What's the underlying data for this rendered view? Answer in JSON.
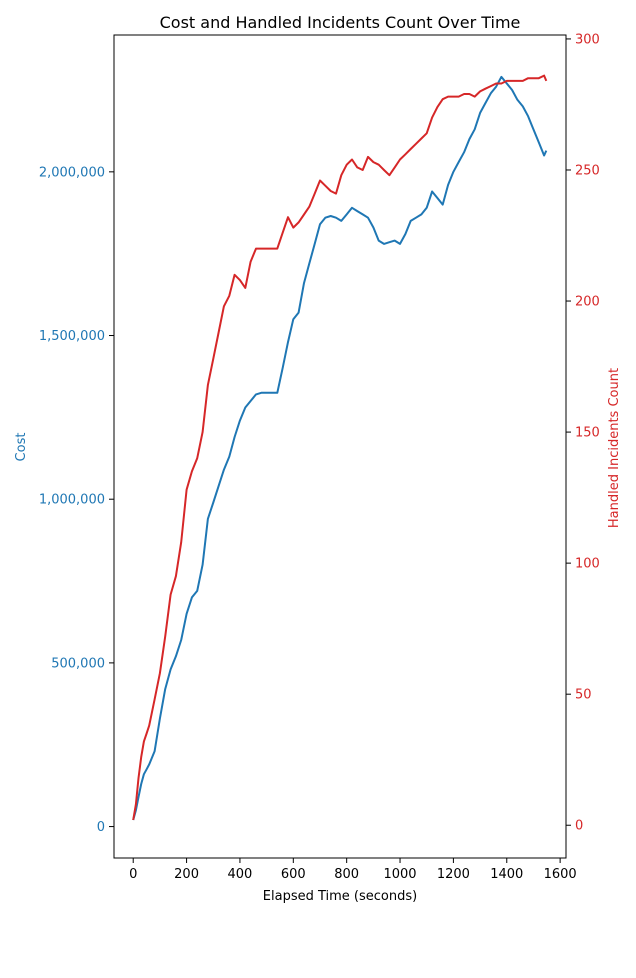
{
  "chart_data": {
    "type": "line",
    "title": "Cost and Handled Incidents Count Over Time",
    "xlabel": "Elapsed Time (seconds)",
    "ylabel_left": "Cost",
    "ylabel_right": "Handled Incidents Count",
    "xlim": [
      -72,
      1622
    ],
    "ylim_left": [
      -96000,
      2418000
    ],
    "ylim_right": [
      -12.5,
      301.5
    ],
    "x_ticks": [
      0,
      200,
      400,
      600,
      800,
      1000,
      1200,
      1400,
      1600
    ],
    "x_tick_labels": [
      "0",
      "200",
      "400",
      "600",
      "800",
      "1000",
      "1200",
      "1400",
      "1600"
    ],
    "y_left_ticks": [
      0,
      500000,
      1000000,
      1500000,
      2000000
    ],
    "y_left_tick_labels": [
      "0",
      "500,000",
      "1,000,000",
      "1,500,000",
      "2,000,000"
    ],
    "y_right_ticks": [
      0,
      50,
      100,
      150,
      200,
      250,
      300
    ],
    "y_right_tick_labels": [
      "0",
      "50",
      "100",
      "150",
      "200",
      "250",
      "300"
    ],
    "grid": false,
    "legend": "none",
    "colors": {
      "cost": "#1f77b4",
      "incidents": "#d62728",
      "axis": "#000000"
    },
    "series": [
      {
        "axis": "left",
        "color": "#1f77b4",
        "x": [
          0,
          10,
          20,
          30,
          40,
          50,
          60,
          80,
          100,
          120,
          140,
          160,
          180,
          200,
          220,
          240,
          260,
          280,
          300,
          320,
          340,
          360,
          380,
          400,
          420,
          440,
          460,
          480,
          500,
          520,
          540,
          560,
          580,
          600,
          620,
          640,
          660,
          680,
          700,
          720,
          740,
          760,
          780,
          800,
          820,
          840,
          860,
          880,
          900,
          920,
          940,
          960,
          980,
          1000,
          1020,
          1040,
          1060,
          1080,
          1100,
          1120,
          1140,
          1160,
          1180,
          1200,
          1220,
          1240,
          1260,
          1280,
          1300,
          1320,
          1340,
          1360,
          1380,
          1400,
          1420,
          1440,
          1460,
          1480,
          1500,
          1520,
          1540,
          1548
        ],
        "values": [
          20000,
          50000,
          90000,
          130000,
          160000,
          175000,
          190000,
          230000,
          330000,
          420000,
          480000,
          520000,
          570000,
          650000,
          700000,
          720000,
          800000,
          940000,
          990000,
          1040000,
          1090000,
          1130000,
          1190000,
          1240000,
          1280000,
          1300000,
          1320000,
          1325000,
          1325000,
          1325000,
          1325000,
          1400000,
          1480000,
          1550000,
          1570000,
          1660000,
          1720000,
          1780000,
          1840000,
          1860000,
          1865000,
          1860000,
          1850000,
          1870000,
          1890000,
          1880000,
          1870000,
          1860000,
          1830000,
          1790000,
          1780000,
          1785000,
          1790000,
          1780000,
          1810000,
          1850000,
          1860000,
          1870000,
          1890000,
          1940000,
          1920000,
          1900000,
          1960000,
          2000000,
          2030000,
          2060000,
          2100000,
          2130000,
          2180000,
          2210000,
          2240000,
          2260000,
          2290000,
          2270000,
          2250000,
          2220000,
          2200000,
          2170000,
          2130000,
          2090000,
          2050000,
          2065000
        ]
      },
      {
        "axis": "right",
        "color": "#d62728",
        "x": [
          0,
          10,
          20,
          30,
          40,
          50,
          60,
          80,
          100,
          120,
          140,
          160,
          180,
          200,
          220,
          240,
          260,
          280,
          300,
          320,
          340,
          360,
          380,
          400,
          420,
          440,
          460,
          480,
          500,
          520,
          540,
          560,
          580,
          600,
          620,
          640,
          660,
          680,
          700,
          720,
          740,
          760,
          780,
          800,
          820,
          840,
          860,
          880,
          900,
          920,
          940,
          960,
          980,
          1000,
          1020,
          1040,
          1060,
          1080,
          1100,
          1120,
          1140,
          1160,
          1180,
          1200,
          1220,
          1240,
          1260,
          1280,
          1300,
          1320,
          1340,
          1360,
          1380,
          1400,
          1420,
          1440,
          1460,
          1480,
          1500,
          1520,
          1540,
          1548
        ],
        "values": [
          2,
          8,
          18,
          26,
          32,
          35,
          38,
          48,
          58,
          72,
          88,
          95,
          108,
          128,
          135,
          140,
          150,
          168,
          178,
          188,
          198,
          202,
          210,
          208,
          205,
          215,
          220,
          220,
          220,
          220,
          220,
          226,
          232,
          228,
          230,
          233,
          236,
          241,
          246,
          244,
          242,
          241,
          248,
          252,
          254,
          251,
          250,
          255,
          253,
          252,
          250,
          248,
          251,
          254,
          256,
          258,
          260,
          262,
          264,
          270,
          274,
          277,
          278,
          278,
          278,
          279,
          279,
          278,
          280,
          281,
          282,
          283,
          283,
          284,
          284,
          284,
          284,
          285,
          285,
          285,
          286,
          284
        ]
      }
    ]
  }
}
